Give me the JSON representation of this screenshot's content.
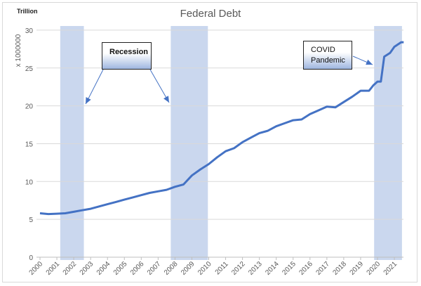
{
  "chart_data": {
    "type": "line",
    "title": "Federal Debt",
    "unit_label": "Trillion",
    "ylabel": "x 1000000",
    "xlabel": "",
    "ylim": [
      0,
      30
    ],
    "yticks": [
      0,
      5,
      10,
      15,
      20,
      25,
      30
    ],
    "xlim": [
      2000,
      2021.6
    ],
    "xticks": [
      "2000",
      "2001",
      "2002",
      "2003",
      "2004",
      "2005",
      "2006",
      "2007",
      "2008",
      "2009",
      "2010",
      "2011",
      "2012",
      "2013",
      "2014",
      "2015",
      "2016",
      "2017",
      "2018",
      "2019",
      "2020",
      "2021"
    ],
    "grid": true,
    "line_color": "#4472c4",
    "band_color": "#b4c6e7",
    "series": [
      {
        "x": [
          2000,
          2000.5,
          2001,
          2001.5,
          2002,
          2002.5,
          2003,
          2003.5,
          2004,
          2004.5,
          2005,
          2005.5,
          2006,
          2006.5,
          2007,
          2007.5,
          2008,
          2008.5,
          2009,
          2009.5,
          2010,
          2010.5,
          2011,
          2011.5,
          2012,
          2012.5,
          2013,
          2013.5,
          2014,
          2014.5,
          2015,
          2015.5,
          2016,
          2016.5,
          2017,
          2017.5,
          2018,
          2018.5,
          2019,
          2019.5,
          2019.75,
          2020,
          2020.2,
          2020.4,
          2020.75,
          2021,
          2021.4,
          2021.55
        ],
        "y": [
          5.8,
          5.7,
          5.75,
          5.8,
          6.0,
          6.2,
          6.4,
          6.7,
          7.0,
          7.3,
          7.6,
          7.9,
          8.2,
          8.5,
          8.7,
          8.9,
          9.3,
          9.6,
          10.8,
          11.6,
          12.3,
          13.2,
          14.0,
          14.4,
          15.2,
          15.8,
          16.4,
          16.7,
          17.3,
          17.7,
          18.1,
          18.2,
          18.9,
          19.4,
          19.9,
          19.8,
          20.5,
          21.2,
          22.0,
          22.0,
          22.7,
          23.2,
          23.2,
          26.5,
          27.0,
          27.8,
          28.4,
          28.4
        ]
      }
    ],
    "shaded_periods": [
      {
        "start": 2001.2,
        "end": 2002.6
      },
      {
        "start": 2007.75,
        "end": 2009.95
      },
      {
        "start": 2019.8,
        "end": 2021.45
      }
    ],
    "annotations": [
      {
        "text": "Recession"
      },
      {
        "text_line1": "COVID",
        "text_line2": "Pandemic"
      }
    ]
  }
}
